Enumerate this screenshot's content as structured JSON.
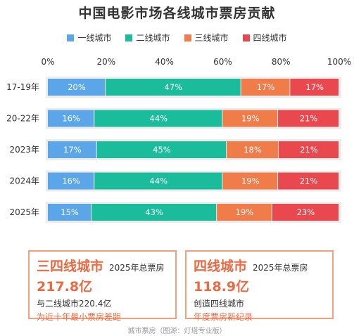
{
  "colors": {
    "tier1": "#5aa6e8",
    "tier2": "#1abc9c",
    "tier3": "#f07c4a",
    "tier4": "#e9484f",
    "bar_bg": "#ececec",
    "accent": "#ea6b43"
  },
  "chart_data": {
    "type": "bar",
    "orientation": "horizontal",
    "stacked": true,
    "title": "中国电影市场各线城市票房贡献",
    "x_ticks": [
      "0%",
      "20%",
      "40%",
      "60%",
      "80%",
      "100%"
    ],
    "xlim": [
      0,
      100
    ],
    "legend_position": "top",
    "categories": [
      "17-19年",
      "20-22年",
      "2023年",
      "2024年",
      "2025年"
    ],
    "series": [
      {
        "name": "一线城市",
        "values": [
          20,
          16,
          17,
          16,
          15
        ],
        "labels": [
          "20%",
          "16%",
          "17%",
          "16%",
          "15%"
        ]
      },
      {
        "name": "二线城市",
        "values": [
          47,
          44,
          45,
          44,
          43
        ],
        "labels": [
          "47%",
          "44%",
          "45%",
          "44%",
          "43%"
        ]
      },
      {
        "name": "三线城市",
        "values": [
          17,
          19,
          18,
          19,
          19
        ],
        "labels": [
          "17%",
          "19%",
          "18%",
          "19%",
          "19%"
        ]
      },
      {
        "name": "四线城市",
        "values": [
          17,
          21,
          21,
          21,
          23
        ],
        "labels": [
          "17%",
          "21%",
          "21%",
          "21%",
          "23%"
        ]
      }
    ]
  },
  "cards": {
    "left": {
      "big": "三四线城市",
      "sub": "2025年总票房",
      "value": "217.8亿",
      "line": "与二线城市220.4亿",
      "accent": "为近十年最小票房差距"
    },
    "right": {
      "big": "四线城市",
      "sub": "2025年总票房",
      "value": "118.9亿",
      "line": "创造四线城市",
      "accent": "年度票房新纪录"
    }
  },
  "source": "城市票房（图源：灯塔专业版）"
}
